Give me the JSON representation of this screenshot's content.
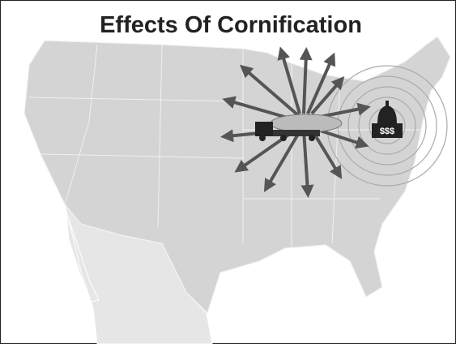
{
  "title": "Effects Of Cornification",
  "capitol": {
    "label": "$$$"
  }
}
